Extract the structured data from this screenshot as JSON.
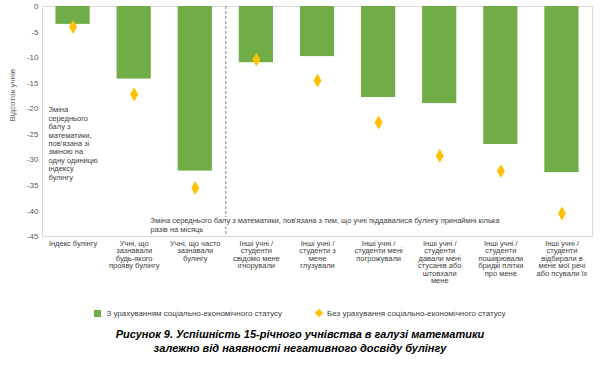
{
  "chart_data": {
    "type": "bar",
    "title": "Рисунок 9. Успішність 15-річного учнівства в галузі математики\nзалежно від наявності негативного досвіду булінгу",
    "y_label": "Відсоток учнів",
    "categories": [
      "Індекс булінгу",
      "Учні, що\nзазнавали\nбудь-якого\nпрояву булінгу",
      "Учні, що часто\nзазнавали\nбулінгу",
      "Інші учні /\nстуденти\nсвідомо мене\nігнорували",
      "Інші учні /\nстуденти з\nмене\nглузували",
      "Інші учні /\nстуденти мені\nпогрожували",
      "Інші учні /\nстуденти\nдавали мені\nстусанів або\nштовхали\nмене",
      "Інші учні /\nстуденти\nпоширювали\nбридкі плітки\nпро мене",
      "Інші учні /\nстуденти\nвідбирали в\nмене мої речі\nабо псували їх"
    ],
    "series": [
      {
        "name": "З урахуванням соціально-економічного статусу",
        "type": "bar",
        "color": "#70ad47",
        "values": [
          -3.5,
          -14.2,
          -32.2,
          -11,
          -9.8,
          -17.8,
          -19,
          -27,
          -32.5
        ]
      },
      {
        "name": "Без урахування соціально-економічного статусу",
        "type": "scatter",
        "marker": "diamond",
        "color": "#ffc000",
        "values": [
          -4,
          -17.2,
          -35.5,
          -10.4,
          -14.5,
          -22.7,
          -29.2,
          -32.2,
          -40.5
        ]
      }
    ],
    "annotations": [
      "Зміна\nсереднього\nбалу з\nматематики,\nпов'язана зі\nзміною на\nодну одиницю\nіндексу\nбулінгу",
      "Зміна середнього балу з математики, пов'язана з тим, що учні піддавалися булінгу принаймні кілька\nразів на місяць"
    ],
    "ylim": [
      -45,
      0
    ],
    "yticks": [
      -45,
      -40,
      -35,
      -30,
      -25,
      -20,
      -15,
      -10,
      -5,
      0
    ],
    "grid": false,
    "legend": "bottom"
  }
}
